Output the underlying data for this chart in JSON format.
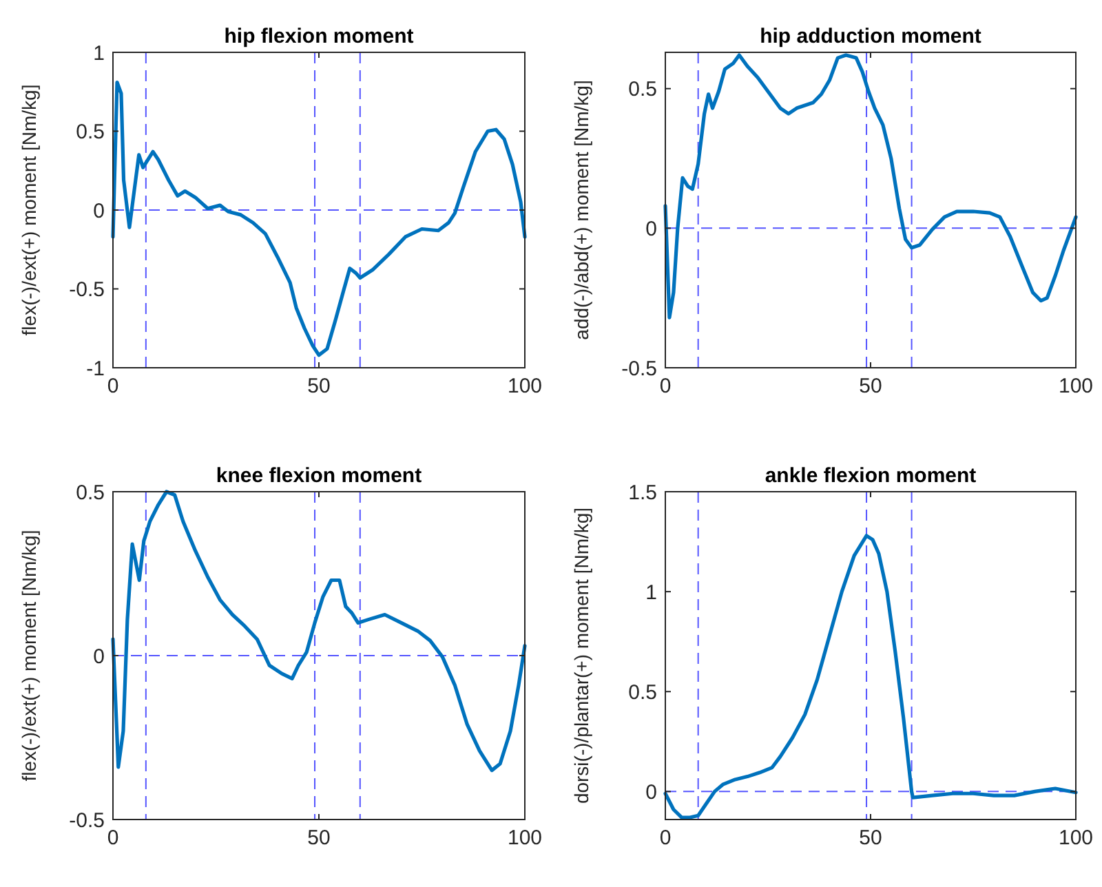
{
  "chart_data": [
    {
      "type": "line",
      "title": "hip flexion moment",
      "ylabel": "flex(-)/ext(+) moment [Nm/kg]",
      "xlim": [
        0,
        100
      ],
      "xticks": [
        0,
        50,
        100
      ],
      "ylim": [
        -1,
        1
      ],
      "yticks": [
        -1,
        -0.5,
        0,
        0.5,
        1
      ],
      "grid": false,
      "line_style": "solid",
      "marker": "none",
      "series": [
        {
          "color": "#0072bd",
          "x": [
            0,
            1,
            2,
            2.6,
            4,
            5.5,
            6.3,
            7.3,
            9.7,
            11,
            13.5,
            15.7,
            17.5,
            20,
            23,
            26,
            28,
            31,
            34,
            37,
            40,
            43,
            44.5,
            46.5,
            48.5,
            50,
            52,
            54,
            56,
            57.5,
            59,
            60,
            63,
            67,
            71,
            75,
            79,
            81.5,
            83,
            85,
            88,
            91,
            93,
            95,
            97,
            99,
            100
          ],
          "values": [
            -0.17,
            0.81,
            0.74,
            0.19,
            -0.11,
            0.19,
            0.35,
            0.27,
            0.37,
            0.32,
            0.19,
            0.09,
            0.12,
            0.08,
            0.01,
            0.03,
            -0.01,
            -0.03,
            -0.08,
            -0.15,
            -0.3,
            -0.46,
            -0.62,
            -0.75,
            -0.86,
            -0.92,
            -0.88,
            -0.7,
            -0.51,
            -0.37,
            -0.4,
            -0.43,
            -0.38,
            -0.28,
            -0.17,
            -0.12,
            -0.13,
            -0.08,
            -0.02,
            0.14,
            0.37,
            0.5,
            0.51,
            0.45,
            0.29,
            0.05,
            -0.17
          ]
        }
      ],
      "ref_lines": [
        {
          "axis": "y",
          "value": 0,
          "color": "#5555ff",
          "line_style": "dashed"
        },
        {
          "axis": "x",
          "value": 8,
          "color": "#5555ff",
          "line_style": "dashed"
        },
        {
          "axis": "x",
          "value": 49,
          "color": "#5555ff",
          "line_style": "dashed"
        },
        {
          "axis": "x",
          "value": 60,
          "color": "#5555ff",
          "line_style": "dashed"
        }
      ]
    },
    {
      "type": "line",
      "title": "hip adduction moment",
      "ylabel": "add(-)/abd(+) moment [Nm/kg]",
      "xlim": [
        0,
        100
      ],
      "xticks": [
        0,
        50,
        100
      ],
      "ylim": [
        -0.5,
        0.63
      ],
      "yticks": [
        -0.5,
        0,
        0.5
      ],
      "grid": false,
      "line_style": "solid",
      "marker": "none",
      "series": [
        {
          "color": "#0072bd",
          "x": [
            0,
            1,
            2,
            3,
            4.2,
            5.5,
            6.6,
            8,
            9.5,
            10.5,
            11.5,
            13,
            14.5,
            16.5,
            18,
            20,
            22.5,
            25,
            28,
            30,
            32,
            34,
            36,
            38,
            40,
            42,
            44,
            46.5,
            48,
            49.5,
            51,
            53,
            55,
            57,
            58.5,
            60,
            62,
            65,
            68,
            71,
            75,
            79,
            81.5,
            84,
            87,
            89.5,
            91.5,
            93,
            95,
            97,
            100
          ],
          "values": [
            0.08,
            -0.32,
            -0.23,
            0,
            0.18,
            0.15,
            0.14,
            0.23,
            0.41,
            0.48,
            0.43,
            0.49,
            0.57,
            0.59,
            0.62,
            0.58,
            0.54,
            0.49,
            0.43,
            0.41,
            0.43,
            0.44,
            0.45,
            0.48,
            0.53,
            0.61,
            0.62,
            0.61,
            0.56,
            0.49,
            0.43,
            0.37,
            0.25,
            0.07,
            -0.04,
            -0.07,
            -0.06,
            -0.005,
            0.04,
            0.06,
            0.06,
            0.055,
            0.04,
            -0.03,
            -0.14,
            -0.23,
            -0.26,
            -0.25,
            -0.17,
            -0.08,
            0.04
          ]
        }
      ],
      "ref_lines": [
        {
          "axis": "y",
          "value": 0,
          "color": "#5555ff",
          "line_style": "dashed"
        },
        {
          "axis": "x",
          "value": 8,
          "color": "#5555ff",
          "line_style": "dashed"
        },
        {
          "axis": "x",
          "value": 49,
          "color": "#5555ff",
          "line_style": "dashed"
        },
        {
          "axis": "x",
          "value": 60,
          "color": "#5555ff",
          "line_style": "dashed"
        }
      ]
    },
    {
      "type": "line",
      "title": "knee flexion moment",
      "ylabel": "flex(-)/ext(+) moment [Nm/kg]",
      "xlim": [
        0,
        100
      ],
      "xticks": [
        0,
        50,
        100
      ],
      "ylim": [
        -0.5,
        0.5
      ],
      "yticks": [
        -0.5,
        0,
        0.5
      ],
      "grid": false,
      "line_style": "solid",
      "marker": "none",
      "series": [
        {
          "color": "#0072bd",
          "x": [
            0,
            1.3,
            2.5,
            3.5,
            4.7,
            6.4,
            7.5,
            9,
            11,
            13,
            15,
            17,
            20,
            23,
            26,
            29,
            32,
            35,
            38,
            41,
            43.5,
            45,
            47,
            49,
            51,
            53,
            55,
            56.5,
            58,
            59.5,
            62,
            66,
            70,
            74,
            77,
            80,
            83,
            86,
            89,
            92,
            94,
            96.5,
            98.5,
            100
          ],
          "values": [
            0.05,
            -0.34,
            -0.23,
            0.11,
            0.34,
            0.23,
            0.35,
            0.41,
            0.46,
            0.5,
            0.49,
            0.41,
            0.32,
            0.24,
            0.17,
            0.125,
            0.09,
            0.05,
            -0.03,
            -0.055,
            -0.07,
            -0.03,
            0.01,
            0.1,
            0.18,
            0.23,
            0.23,
            0.15,
            0.13,
            0.1,
            0.11,
            0.125,
            0.1,
            0.075,
            0.046,
            -0.004,
            -0.09,
            -0.21,
            -0.29,
            -0.35,
            -0.33,
            -0.23,
            -0.09,
            0.03
          ]
        }
      ],
      "ref_lines": [
        {
          "axis": "y",
          "value": 0,
          "color": "#5555ff",
          "line_style": "dashed"
        },
        {
          "axis": "x",
          "value": 8,
          "color": "#5555ff",
          "line_style": "dashed"
        },
        {
          "axis": "x",
          "value": 49,
          "color": "#5555ff",
          "line_style": "dashed"
        },
        {
          "axis": "x",
          "value": 60,
          "color": "#5555ff",
          "line_style": "dashed"
        }
      ]
    },
    {
      "type": "line",
      "title": "ankle flexion moment",
      "ylabel": "dorsi(-)/plantar(+) moment [Nm/kg]",
      "xlim": [
        0,
        100
      ],
      "xticks": [
        0,
        50,
        100
      ],
      "ylim": [
        -0.14,
        1.5
      ],
      "yticks": [
        0,
        0.5,
        1,
        1.5
      ],
      "grid": false,
      "line_style": "solid",
      "marker": "none",
      "series": [
        {
          "color": "#0072bd",
          "x": [
            0,
            2,
            4,
            6,
            8,
            10,
            12,
            14,
            17,
            20,
            23,
            26,
            28,
            31,
            34,
            37,
            40,
            43,
            46,
            49,
            50.5,
            52,
            54,
            56,
            58,
            60,
            60.3,
            65,
            70,
            75,
            80,
            85,
            90,
            95,
            100
          ],
          "values": [
            -0.01,
            -0.09,
            -0.13,
            -0.13,
            -0.12,
            -0.06,
            0,
            0.035,
            0.06,
            0.075,
            0.095,
            0.12,
            0.175,
            0.27,
            0.385,
            0.56,
            0.78,
            1,
            1.18,
            1.28,
            1.26,
            1.19,
            1,
            0.7,
            0.37,
            0,
            -0.03,
            -0.02,
            -0.01,
            -0.01,
            -0.02,
            -0.02,
            0,
            0.015,
            -0.005
          ]
        }
      ],
      "ref_lines": [
        {
          "axis": "y",
          "value": 0,
          "color": "#5555ff",
          "line_style": "dashed"
        },
        {
          "axis": "x",
          "value": 8,
          "color": "#5555ff",
          "line_style": "dashed"
        },
        {
          "axis": "x",
          "value": 49,
          "color": "#5555ff",
          "line_style": "dashed"
        },
        {
          "axis": "x",
          "value": 60,
          "color": "#5555ff",
          "line_style": "dashed"
        }
      ]
    }
  ]
}
